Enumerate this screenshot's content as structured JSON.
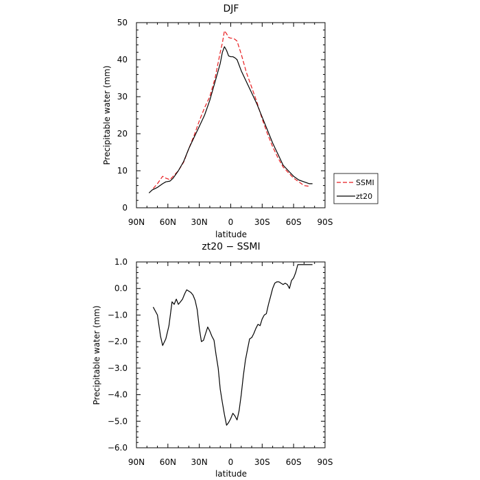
{
  "chart_data": [
    {
      "type": "line",
      "title": "DJF",
      "xlabel": "latitude",
      "ylabel": "Precipitable water (mm)",
      "xlim": [
        -90,
        90
      ],
      "ylim": [
        0,
        50
      ],
      "x_ticks": [
        -90,
        -60,
        -30,
        0,
        30,
        60,
        90
      ],
      "x_tick_labels": [
        "90N",
        "60N",
        "30N",
        "0",
        "30S",
        "60S",
        "90S"
      ],
      "y_ticks": [
        0,
        10,
        20,
        30,
        40,
        50
      ],
      "y_tick_labels": [
        "0",
        "10",
        "20",
        "30",
        "40",
        "50"
      ],
      "grid": false,
      "legend": "right",
      "series": [
        {
          "name": "SSMI",
          "color": "#e8191c",
          "dash": "dashed",
          "x": [
            -74,
            -70,
            -65,
            -62,
            -58,
            -55,
            -50,
            -45,
            -40,
            -35,
            -30,
            -25,
            -20,
            -15,
            -10,
            -8,
            -6,
            -4,
            -2,
            0,
            2,
            4,
            6,
            10,
            15,
            20,
            25,
            30,
            35,
            40,
            45,
            50,
            55,
            60,
            65,
            70,
            75
          ],
          "y": [
            5.2,
            6.5,
            8.5,
            8.0,
            7.6,
            8.5,
            10.0,
            12.3,
            16.0,
            19.5,
            23.5,
            27.0,
            30.0,
            35.0,
            42.0,
            44.5,
            47.8,
            47.0,
            46.0,
            45.8,
            45.8,
            45.5,
            45.0,
            41.5,
            36.5,
            32.5,
            28.5,
            24.0,
            20.0,
            16.5,
            13.5,
            11.0,
            9.5,
            8.0,
            7.0,
            6.0,
            5.8
          ]
        },
        {
          "name": "zt20",
          "color": "#000000",
          "dash": "solid",
          "x": [
            -78,
            -75,
            -70,
            -65,
            -62,
            -58,
            -55,
            -50,
            -45,
            -40,
            -35,
            -30,
            -25,
            -20,
            -15,
            -10,
            -8,
            -6,
            -4,
            -2,
            0,
            2,
            4,
            6,
            10,
            15,
            20,
            25,
            30,
            35,
            40,
            45,
            50,
            55,
            60,
            65,
            70,
            75,
            78
          ],
          "y": [
            4.0,
            4.8,
            5.5,
            6.5,
            7.0,
            7.2,
            8.0,
            10.0,
            12.5,
            16.0,
            19.0,
            22.0,
            25.0,
            29.0,
            34.0,
            39.0,
            42.0,
            43.5,
            42.5,
            41.0,
            40.8,
            40.8,
            40.5,
            40.0,
            37.0,
            34.0,
            31.0,
            28.0,
            24.5,
            21.0,
            17.5,
            14.5,
            11.5,
            10.0,
            8.5,
            7.5,
            7.0,
            6.5,
            6.5
          ]
        }
      ]
    },
    {
      "type": "line",
      "title": "zt20 − SSMI",
      "xlabel": "latitude",
      "ylabel": "Precipitable water (mm)",
      "xlim": [
        -90,
        90
      ],
      "ylim": [
        -6,
        1
      ],
      "x_ticks": [
        -90,
        -60,
        -30,
        0,
        30,
        60,
        90
      ],
      "x_tick_labels": [
        "90N",
        "60N",
        "30N",
        "0",
        "30S",
        "60S",
        "90S"
      ],
      "y_ticks": [
        -6,
        -5,
        -4,
        -3,
        -2,
        -1,
        0,
        1
      ],
      "y_tick_labels": [
        "−6.0",
        "−5.0",
        "−4.0",
        "−3.0",
        "−2.0",
        "−1.0",
        "0.0",
        "1.0"
      ],
      "grid": false,
      "series": [
        {
          "color": "#000000",
          "dash": "solid",
          "x": [
            -74,
            -70,
            -67,
            -65,
            -62,
            -59,
            -56,
            -54,
            -52,
            -50,
            -48,
            -46,
            -44,
            -42,
            -40,
            -38,
            -36,
            -34,
            -32,
            -30,
            -28,
            -26,
            -24,
            -22,
            -20,
            -18,
            -16,
            -14,
            -12,
            -10,
            -8,
            -6,
            -4,
            -2,
            0,
            2,
            4,
            6,
            8,
            10,
            12,
            14,
            16,
            18,
            20,
            22,
            24,
            26,
            28,
            30,
            32,
            34,
            36,
            38,
            40,
            42,
            44,
            46,
            48,
            50,
            52,
            54,
            56,
            58,
            60,
            62,
            64,
            66,
            68,
            70,
            72,
            74,
            76,
            78
          ],
          "y": [
            -0.7,
            -1.0,
            -1.8,
            -2.15,
            -1.9,
            -1.4,
            -0.5,
            -0.6,
            -0.4,
            -0.6,
            -0.5,
            -0.4,
            -0.2,
            -0.05,
            -0.1,
            -0.15,
            -0.25,
            -0.45,
            -0.8,
            -1.5,
            -2.0,
            -1.95,
            -1.7,
            -1.45,
            -1.6,
            -1.8,
            -1.95,
            -2.5,
            -3.0,
            -3.8,
            -4.3,
            -4.75,
            -5.15,
            -5.05,
            -4.9,
            -4.7,
            -4.8,
            -4.95,
            -4.6,
            -4.0,
            -3.3,
            -2.7,
            -2.3,
            -1.9,
            -1.85,
            -1.7,
            -1.5,
            -1.35,
            -1.4,
            -1.15,
            -1.0,
            -0.95,
            -0.6,
            -0.3,
            0.0,
            0.2,
            0.25,
            0.25,
            0.2,
            0.15,
            0.2,
            0.15,
            0.0,
            0.3,
            0.4,
            0.6,
            0.9,
            0.9,
            0.9,
            0.9,
            0.9,
            0.9,
            0.9,
            0.9
          ]
        }
      ]
    }
  ]
}
